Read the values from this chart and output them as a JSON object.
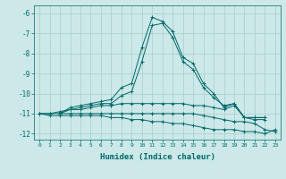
{
  "xlabel": "Humidex (Indice chaleur)",
  "ylabel": "",
  "background_color": "#cce8e8",
  "grid_color": "#aacccc",
  "line_color": "#006868",
  "xlim": [
    -0.5,
    23.5
  ],
  "ylim": [
    -12.3,
    -5.6
  ],
  "xticks": [
    0,
    1,
    2,
    3,
    4,
    5,
    6,
    7,
    8,
    9,
    10,
    11,
    12,
    13,
    14,
    15,
    16,
    17,
    18,
    19,
    20,
    21,
    22,
    23
  ],
  "yticks": [
    -12,
    -11,
    -10,
    -9,
    -8,
    -7,
    -6
  ],
  "series": [
    [
      null,
      null,
      -11.0,
      -10.7,
      -10.6,
      -10.5,
      -10.4,
      -10.3,
      -9.7,
      -9.5,
      -7.7,
      -6.2,
      -6.4,
      -6.9,
      -8.2,
      -8.5,
      -9.5,
      -10.0,
      -10.7,
      -10.5,
      -11.2,
      -11.2,
      -11.2,
      null
    ],
    [
      null,
      null,
      -11.0,
      -10.8,
      -10.7,
      -10.6,
      -10.5,
      -10.5,
      -10.1,
      -9.9,
      -8.4,
      -6.6,
      -6.5,
      -7.2,
      -8.4,
      -8.8,
      -9.7,
      -10.2,
      -10.6,
      -10.5,
      -11.2,
      -11.3,
      -11.3,
      null
    ],
    [
      -11.0,
      -11.0,
      -10.9,
      -10.8,
      -10.8,
      -10.7,
      -10.6,
      -10.6,
      -10.5,
      -10.5,
      -10.5,
      -10.5,
      -10.5,
      -10.5,
      -10.5,
      -10.6,
      -10.6,
      -10.7,
      -10.8,
      -10.6,
      -11.2,
      -11.2,
      -11.2,
      null
    ],
    [
      -11.0,
      -11.0,
      -11.0,
      -11.0,
      -11.0,
      -11.0,
      -11.0,
      -11.0,
      -11.0,
      -11.0,
      -11.0,
      -11.0,
      -11.0,
      -11.0,
      -11.0,
      -11.0,
      -11.1,
      -11.2,
      -11.3,
      -11.4,
      -11.4,
      -11.5,
      -11.8,
      -11.9
    ],
    [
      -11.0,
      -11.1,
      -11.1,
      -11.1,
      -11.1,
      -11.1,
      -11.1,
      -11.2,
      -11.2,
      -11.3,
      -11.3,
      -11.4,
      -11.4,
      -11.5,
      -11.5,
      -11.6,
      -11.7,
      -11.8,
      -11.8,
      -11.8,
      -11.9,
      -11.9,
      -12.0,
      -11.8
    ]
  ]
}
